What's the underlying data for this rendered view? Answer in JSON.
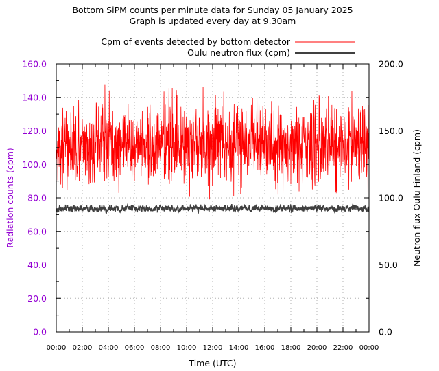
{
  "chart_data": {
    "type": "line",
    "title_lines": [
      "Bottom SiPM counts per minute data for Sunday 05 January 2025",
      "Graph is updated every day at 9.30am"
    ],
    "xlabel": "Time (UTC)",
    "ylabel": "Radiation counts (cpm)",
    "y2label": "Neutron flux Oulu Finland (cpm)",
    "xlim_hours": [
      0,
      24
    ],
    "ylim": [
      0,
      160
    ],
    "y2lim": [
      0,
      200
    ],
    "x_ticks": [
      "00:00",
      "02:00",
      "04:00",
      "06:00",
      "08:00",
      "10:00",
      "12:00",
      "14:00",
      "16:00",
      "18:00",
      "20:00",
      "22:00",
      "00:00"
    ],
    "y_ticks": [
      "0.0",
      "20.0",
      "40.0",
      "60.0",
      "80.0",
      "100.0",
      "120.0",
      "140.0",
      "160.0"
    ],
    "y2_ticks": [
      "0.0",
      "50.0",
      "100.0",
      "150.0",
      "200.0"
    ],
    "grid": true,
    "legend_position": "top-right",
    "series": [
      {
        "name": "Cpm of events detected by bottom detector",
        "axis": "left",
        "color": "#ff0000",
        "mean": 112,
        "typical_min": 90,
        "typical_max": 135,
        "extreme_min": 79,
        "extreme_max": 149
      },
      {
        "name": "Oulu neutron flux (cpm)",
        "axis": "right",
        "color": "#404040",
        "mean": 92,
        "typical_min": 88,
        "typical_max": 96,
        "extreme_min": 86,
        "extreme_max": 98
      }
    ]
  }
}
